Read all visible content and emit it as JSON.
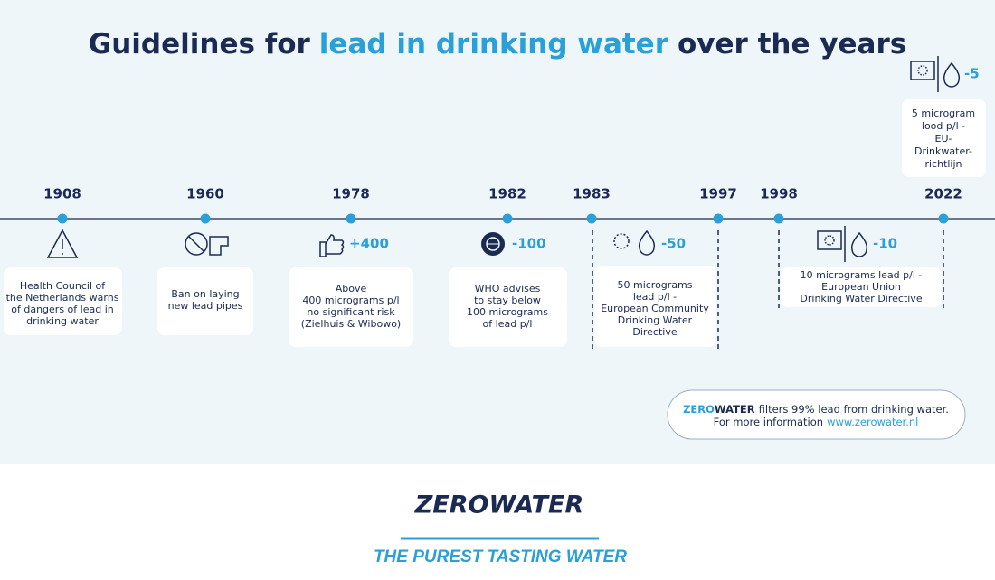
{
  "title": {
    "before": "Guidelines for",
    "highlight": "lead in drinking water",
    "after": "over the years"
  },
  "years": [
    "1908",
    "1960",
    "1978",
    "1982",
    "1983",
    "1997",
    "1998",
    "2022"
  ],
  "events": [
    {
      "lines": [
        "Health Council of",
        "the Netherlands warns",
        "of dangers of lead in",
        "drinking water"
      ]
    },
    {
      "lines": [
        "Ban on laying",
        "new lead pipes"
      ]
    },
    {
      "badge": "+400",
      "lines": [
        "Above",
        "400 micrograms p/l",
        "no significant risk",
        "(Zielhuis & Wibowo)"
      ]
    },
    {
      "badge": "-100",
      "lines": [
        "WHO advises",
        "to stay below",
        "100 micrograms",
        "of lead p/l"
      ]
    },
    {
      "badge": "-50",
      "lines": [
        "50 micrograms",
        "lead p/l -",
        "European Community",
        "Drinking Water",
        "Directive"
      ]
    },
    {
      "badge": "-10",
      "lines": [
        "10 micrograms lead p/l -",
        "European Union",
        "Drinking Water Directive"
      ]
    },
    {
      "badge": "-5",
      "lines": [
        "5 microgram",
        "lood p/l -",
        "EU-",
        "Drinkwater-",
        "richtlijn"
      ]
    }
  ],
  "notice": {
    "brand_a": "ZERO",
    "brand_b": "WATER",
    "text": "filters 99% lead from drinking water.",
    "more": "For more information",
    "link": "www.zerowater.nl"
  },
  "logo": {
    "name": "ZEROWATER",
    "tagline": "THE PUREST TASTING WATER"
  }
}
